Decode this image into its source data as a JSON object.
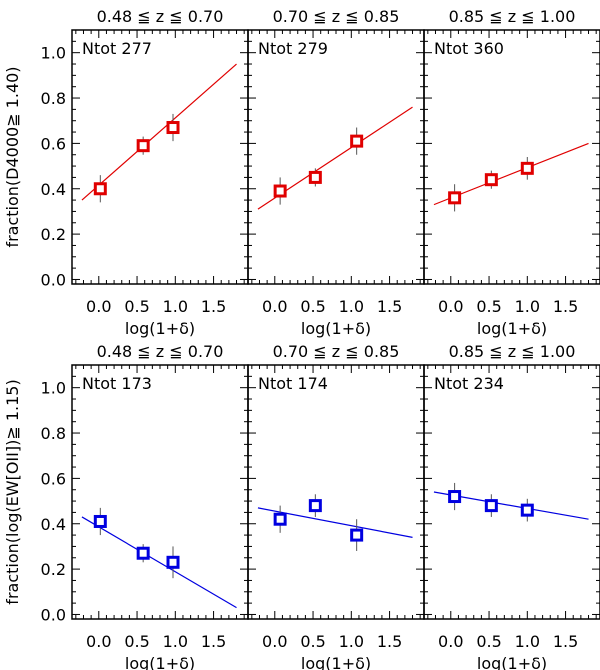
{
  "chart_data": [
    {
      "type": "scatter",
      "title": "0.48 ≦ z ≦ 0.70",
      "xlabel": "log(1+δ)",
      "ylabel": "fraction(D4000≧ 1.40)",
      "xlim": [
        -0.35,
        1.95
      ],
      "ylim": [
        -0.02,
        1.1
      ],
      "xticks": [
        "0.0",
        "0.5",
        "1.0",
        "1.5"
      ],
      "yticks": [
        "0.0",
        "0.2",
        "0.4",
        "0.6",
        "0.8",
        "1.0"
      ],
      "annotation": "Ntot 277",
      "color": "#e00000",
      "points": [
        {
          "x": 0.02,
          "y": 0.4,
          "err": 0.06
        },
        {
          "x": 0.58,
          "y": 0.59,
          "err": 0.04
        },
        {
          "x": 0.97,
          "y": 0.67,
          "err": 0.06
        }
      ],
      "fit": {
        "x": [
          -0.22,
          1.8
        ],
        "y": [
          0.35,
          0.95
        ]
      }
    },
    {
      "type": "scatter",
      "title": "0.70 ≦ z ≦ 0.85",
      "xlabel": "log(1+δ)",
      "ylabel": "",
      "xlim": [
        -0.35,
        1.95
      ],
      "ylim": [
        -0.02,
        1.1
      ],
      "xticks": [
        "0.0",
        "0.5",
        "1.0",
        "1.5"
      ],
      "yticks": [],
      "annotation": "Ntot 279",
      "color": "#e00000",
      "points": [
        {
          "x": 0.07,
          "y": 0.39,
          "err": 0.06
        },
        {
          "x": 0.53,
          "y": 0.45,
          "err": 0.04
        },
        {
          "x": 1.07,
          "y": 0.61,
          "err": 0.06
        }
      ],
      "fit": {
        "x": [
          -0.22,
          1.8
        ],
        "y": [
          0.31,
          0.76
        ]
      }
    },
    {
      "type": "scatter",
      "title": "0.85 ≦ z ≦ 1.00",
      "xlabel": "log(1+δ)",
      "ylabel": "",
      "xlim": [
        -0.35,
        1.95
      ],
      "ylim": [
        -0.02,
        1.1
      ],
      "xticks": [
        "0.0",
        "0.5",
        "1.0",
        "1.5"
      ],
      "yticks": [],
      "annotation": "Ntot 360",
      "color": "#e00000",
      "points": [
        {
          "x": 0.05,
          "y": 0.36,
          "err": 0.06
        },
        {
          "x": 0.53,
          "y": 0.44,
          "err": 0.04
        },
        {
          "x": 1.0,
          "y": 0.49,
          "err": 0.05
        }
      ],
      "fit": {
        "x": [
          -0.22,
          1.8
        ],
        "y": [
          0.33,
          0.6
        ]
      }
    },
    {
      "type": "scatter",
      "title": "0.48 ≦ z ≦ 0.70",
      "xlabel": "log(1+δ)",
      "ylabel": "fraction(log(EW[OII])≧ 1.15)",
      "xlim": [
        -0.35,
        1.95
      ],
      "ylim": [
        -0.02,
        1.1
      ],
      "xticks": [
        "0.0",
        "0.5",
        "1.0",
        "1.5"
      ],
      "yticks": [
        "0.0",
        "0.2",
        "0.4",
        "0.6",
        "0.8",
        "1.0"
      ],
      "annotation": "Ntot 173",
      "color": "#0000e0",
      "points": [
        {
          "x": 0.02,
          "y": 0.41,
          "err": 0.06
        },
        {
          "x": 0.58,
          "y": 0.27,
          "err": 0.04
        },
        {
          "x": 0.97,
          "y": 0.23,
          "err": 0.07
        }
      ],
      "fit": {
        "x": [
          -0.22,
          1.8
        ],
        "y": [
          0.43,
          0.03
        ]
      }
    },
    {
      "type": "scatter",
      "title": "0.70 ≦ z ≦ 0.85",
      "xlabel": "log(1+δ)",
      "ylabel": "",
      "xlim": [
        -0.35,
        1.95
      ],
      "ylim": [
        -0.02,
        1.1
      ],
      "xticks": [
        "0.0",
        "0.5",
        "1.0",
        "1.5"
      ],
      "yticks": [],
      "annotation": "Ntot 174",
      "color": "#0000e0",
      "points": [
        {
          "x": 0.07,
          "y": 0.42,
          "err": 0.06
        },
        {
          "x": 0.53,
          "y": 0.48,
          "err": 0.05
        },
        {
          "x": 1.07,
          "y": 0.35,
          "err": 0.07
        }
      ],
      "fit": {
        "x": [
          -0.22,
          1.8
        ],
        "y": [
          0.47,
          0.34
        ]
      }
    },
    {
      "type": "scatter",
      "title": "0.85 ≦ z ≦ 1.00",
      "xlabel": "log(1+δ)",
      "ylabel": "",
      "xlim": [
        -0.35,
        1.95
      ],
      "ylim": [
        -0.02,
        1.1
      ],
      "xticks": [
        "0.0",
        "0.5",
        "1.0",
        "1.5"
      ],
      "yticks": [],
      "annotation": "Ntot 234",
      "color": "#0000e0",
      "points": [
        {
          "x": 0.05,
          "y": 0.52,
          "err": 0.06
        },
        {
          "x": 0.53,
          "y": 0.48,
          "err": 0.05
        },
        {
          "x": 1.0,
          "y": 0.46,
          "err": 0.05
        }
      ],
      "fit": {
        "x": [
          -0.22,
          1.8
        ],
        "y": [
          0.54,
          0.42
        ]
      }
    }
  ]
}
